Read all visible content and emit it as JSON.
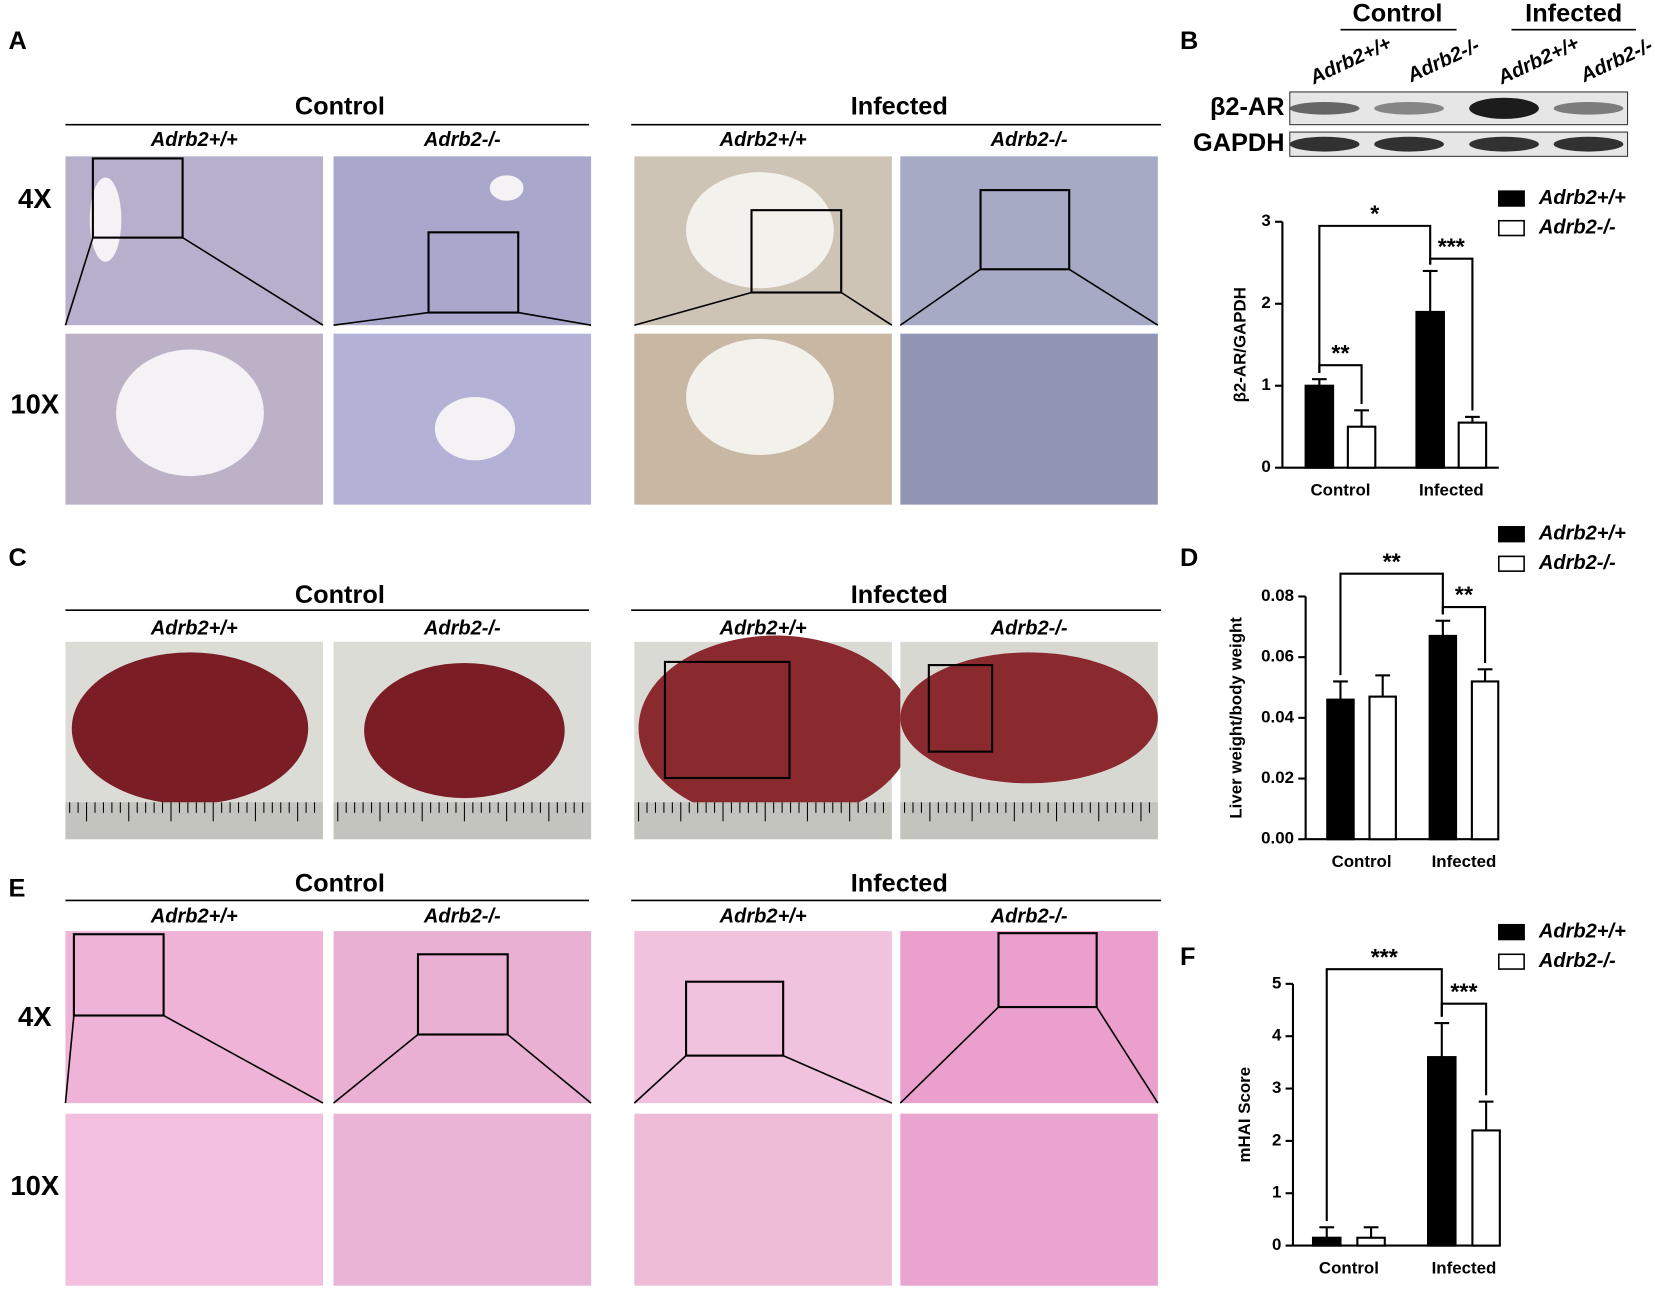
{
  "panels": {
    "A": {
      "letter": "A",
      "groups": [
        "Control",
        "Infected"
      ],
      "genotypes": [
        "Adrb2+/+",
        "Adrb2-/-",
        "Adrb2+/+",
        "Adrb2-/-"
      ],
      "magnifications": [
        "4X",
        "10X"
      ]
    },
    "B": {
      "letter": "B",
      "groups": [
        "Control",
        "Infected"
      ],
      "lanes": [
        "Adrb2+/+",
        "Adrb2-/-",
        "Adrb2+/+",
        "Adrb2-/-"
      ],
      "bands": [
        "β2-AR",
        "GAPDH"
      ]
    },
    "C": {
      "letter": "C",
      "groups": [
        "Control",
        "Infected"
      ],
      "genotypes": [
        "Adrb2+/+",
        "Adrb2-/-",
        "Adrb2+/+",
        "Adrb2-/-"
      ]
    },
    "D": {
      "letter": "D"
    },
    "E": {
      "letter": "E",
      "groups": [
        "Control",
        "Infected"
      ],
      "genotypes": [
        "Adrb2+/+",
        "Adrb2-/-",
        "Adrb2+/+",
        "Adrb2-/-"
      ],
      "magnifications": [
        "4X",
        "10X"
      ]
    },
    "F": {
      "letter": "F"
    }
  },
  "chart_data": [
    {
      "type": "bar",
      "ylabel": "β2-AR/GAPDH",
      "categories": [
        "Control",
        "Infected"
      ],
      "ylim": [
        0,
        3
      ],
      "yticks": [
        0,
        1,
        2,
        3
      ],
      "series": [
        {
          "name": "Adrb2+/+",
          "color": "#000000",
          "values": [
            1.0,
            1.9
          ],
          "errors": [
            0.08,
            0.5
          ]
        },
        {
          "name": "Adrb2-/-",
          "color": "#ffffff",
          "values": [
            0.5,
            0.55
          ],
          "errors": [
            0.2,
            0.07
          ]
        }
      ],
      "annotations": [
        "*",
        "**",
        "***"
      ]
    },
    {
      "type": "bar",
      "ylabel": "Liver weight/body weight",
      "categories": [
        "Control",
        "Infected"
      ],
      "ylim": [
        0,
        0.08
      ],
      "yticks": [
        {
          "value": 0,
          "label": "0.00"
        },
        {
          "value": 0.02,
          "label": "0.02"
        },
        {
          "value": 0.04,
          "label": "0.04"
        },
        {
          "value": 0.06,
          "label": "0.06"
        },
        {
          "value": 0.08,
          "label": "0.08"
        }
      ],
      "series": [
        {
          "name": "Adrb2+/+",
          "color": "#000000",
          "values": [
            0.046,
            0.067
          ],
          "errors": [
            0.006,
            0.005
          ]
        },
        {
          "name": "Adrb2-/-",
          "color": "#ffffff",
          "values": [
            0.047,
            0.052
          ],
          "errors": [
            0.007,
            0.004
          ]
        }
      ],
      "annotations": [
        "**",
        "**"
      ]
    },
    {
      "type": "bar",
      "ylabel": "mHAI Score",
      "categories": [
        "Control",
        "Infected"
      ],
      "ylim": [
        0,
        5
      ],
      "yticks": [
        0,
        1,
        2,
        3,
        4,
        5
      ],
      "series": [
        {
          "name": "Adrb2+/+",
          "color": "#000000",
          "values": [
            0.15,
            3.6
          ],
          "errors": [
            0.2,
            0.65
          ]
        },
        {
          "name": "Adrb2-/-",
          "color": "#ffffff",
          "values": [
            0.15,
            2.2
          ],
          "errors": [
            0.2,
            0.55
          ]
        }
      ],
      "annotations": [
        "***",
        "***"
      ]
    }
  ]
}
